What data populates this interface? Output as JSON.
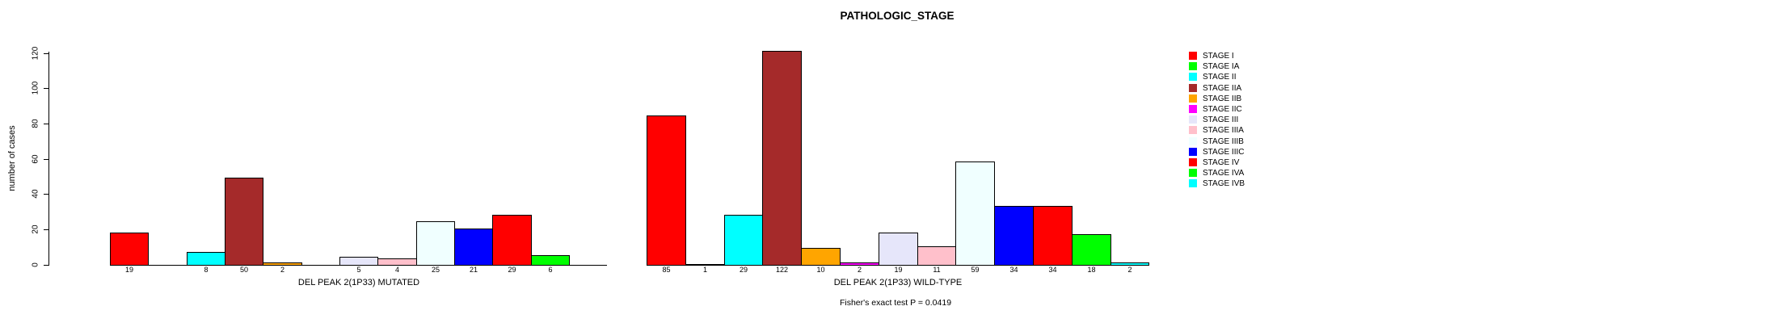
{
  "title": "PATHOLOGIC_STAGE",
  "chart_data": {
    "type": "bar",
    "title": "PATHOLOGIC_STAGE",
    "ylabel": "number of cases",
    "xlabel": "",
    "ylim": [
      0,
      120
    ],
    "yticks": [
      0,
      20,
      40,
      60,
      80,
      100,
      120
    ],
    "grid": false,
    "legend_position": "right",
    "categories": [
      "STAGE I",
      "STAGE IA",
      "STAGE II",
      "STAGE IIA",
      "STAGE IIB",
      "STAGE IIC",
      "STAGE III",
      "STAGE IIIA",
      "STAGE IIIB",
      "STAGE IIIC",
      "STAGE IV",
      "STAGE IVA",
      "STAGE IVB"
    ],
    "palette": [
      "#FF0000",
      "#00FF00",
      "#00FFFF",
      "#A52A2A",
      "#FFA500",
      "#FF00FF",
      "#E6E6FA",
      "#FFC0CB",
      "#F0FFFF",
      "#0000FF",
      "#FF0000",
      "#00FF00",
      "#00FFFF"
    ],
    "series": [
      {
        "name": "DEL PEAK 2(1P33) MUTATED",
        "values": [
          19,
          0,
          8,
          50,
          2,
          0,
          5,
          4,
          25,
          21,
          29,
          6,
          0
        ]
      },
      {
        "name": "DEL PEAK 2(1P33) WILD-TYPE",
        "values": [
          85,
          1,
          29,
          122,
          10,
          2,
          19,
          11,
          59,
          34,
          34,
          18,
          2
        ]
      }
    ],
    "value_labels": "shown under each nonzero bar",
    "annotation": "Fisher's exact test P = 0.0419"
  },
  "legend": {
    "items": [
      {
        "label": "STAGE I",
        "color": "#FF0000"
      },
      {
        "label": "STAGE IA",
        "color": "#00FF00"
      },
      {
        "label": "STAGE II",
        "color": "#00FFFF"
      },
      {
        "label": "STAGE IIA",
        "color": "#A52A2A"
      },
      {
        "label": "STAGE IIB",
        "color": "#FFA500"
      },
      {
        "label": "STAGE IIC",
        "color": "#FF00FF"
      },
      {
        "label": "STAGE III",
        "color": "#E6E6FA"
      },
      {
        "label": "STAGE IIIA",
        "color": "#FFC0CB"
      },
      {
        "label": "STAGE IIIB",
        "color": "#F0FFFF"
      },
      {
        "label": "STAGE IIIC",
        "color": "#0000FF"
      },
      {
        "label": "STAGE IV",
        "color": "#FF0000"
      },
      {
        "label": "STAGE IVA",
        "color": "#00FF00"
      },
      {
        "label": "STAGE IVB",
        "color": "#00FFFF"
      }
    ]
  }
}
